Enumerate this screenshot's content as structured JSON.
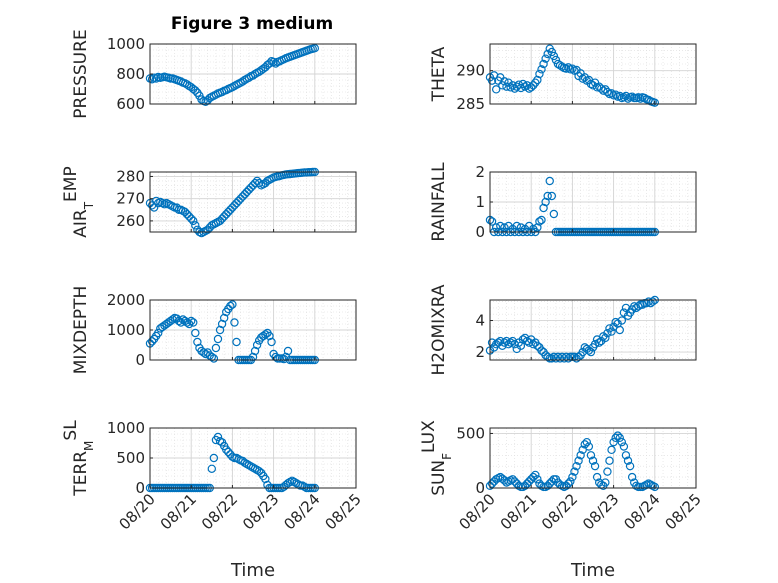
{
  "figure": {
    "title": "Figure 3 medium",
    "marker_color": "#0072bd",
    "grid": true,
    "minor_grid": true
  },
  "chart_data": [
    {
      "type": "scatter",
      "id": "pressure",
      "ylabel": "PRESSURE",
      "ylabel_sub": "",
      "ylim": [
        600,
        1000
      ],
      "yticks": [
        600,
        800,
        1000
      ],
      "xlabel": "",
      "x": [
        0.0,
        0.05,
        0.1,
        0.15,
        0.2,
        0.25,
        0.3,
        0.35,
        0.4,
        0.45,
        0.5,
        0.55,
        0.6,
        0.65,
        0.7,
        0.75,
        0.8,
        0.85,
        0.9,
        0.95,
        1.0,
        1.05,
        1.1,
        1.15,
        1.2,
        1.25,
        1.3,
        1.35,
        1.4,
        1.45,
        1.5,
        1.55,
        1.6,
        1.65,
        1.7,
        1.75,
        1.8,
        1.85,
        1.9,
        1.95,
        2.0,
        2.05,
        2.1,
        2.15,
        2.2,
        2.25,
        2.3,
        2.35,
        2.4,
        2.45,
        2.5,
        2.55,
        2.6,
        2.65,
        2.7,
        2.75,
        2.8,
        2.85,
        2.9,
        2.95,
        3.0,
        3.05,
        3.1,
        3.15,
        3.2,
        3.25,
        3.3,
        3.35,
        3.4,
        3.45,
        3.5,
        3.55,
        3.6,
        3.65,
        3.7,
        3.75,
        3.8,
        3.85,
        3.9,
        3.95,
        4.0
      ],
      "y": [
        770,
        765,
        775,
        770,
        780,
        775,
        778,
        782,
        778,
        775,
        770,
        770,
        765,
        760,
        755,
        750,
        742,
        738,
        730,
        720,
        712,
        700,
        690,
        675,
        655,
        630,
        620,
        615,
        625,
        640,
        648,
        655,
        662,
        670,
        675,
        680,
        688,
        692,
        700,
        706,
        712,
        720,
        728,
        735,
        742,
        750,
        760,
        768,
        775,
        785,
        790,
        800,
        808,
        815,
        825,
        835,
        845,
        860,
        870,
        885,
        880,
        870,
        880,
        885,
        892,
        898,
        905,
        910,
        915,
        920,
        925,
        930,
        935,
        940,
        945,
        950,
        955,
        960,
        965,
        968,
        972
      ]
    },
    {
      "type": "scatter",
      "id": "theta",
      "ylabel": "THETA",
      "ylabel_sub": "",
      "ylim": [
        285,
        294
      ],
      "yticks": [
        285,
        290
      ],
      "xlabel": "",
      "x": [
        0.0,
        0.05,
        0.1,
        0.15,
        0.2,
        0.25,
        0.3,
        0.35,
        0.4,
        0.45,
        0.5,
        0.55,
        0.6,
        0.65,
        0.7,
        0.75,
        0.8,
        0.85,
        0.9,
        0.95,
        1.0,
        1.05,
        1.1,
        1.15,
        1.2,
        1.25,
        1.3,
        1.35,
        1.4,
        1.45,
        1.5,
        1.55,
        1.6,
        1.65,
        1.7,
        1.75,
        1.8,
        1.85,
        1.9,
        1.95,
        2.0,
        2.05,
        2.1,
        2.15,
        2.2,
        2.25,
        2.3,
        2.35,
        2.4,
        2.45,
        2.5,
        2.55,
        2.6,
        2.65,
        2.7,
        2.75,
        2.8,
        2.85,
        2.9,
        2.95,
        3.0,
        3.05,
        3.1,
        3.15,
        3.2,
        3.25,
        3.3,
        3.35,
        3.4,
        3.45,
        3.5,
        3.55,
        3.6,
        3.65,
        3.7,
        3.75,
        3.8,
        3.85,
        3.9,
        3.95,
        4.0
      ],
      "y": [
        289.0,
        288.5,
        289.3,
        287.2,
        288.5,
        289.0,
        287.8,
        288.4,
        287.6,
        288.2,
        287.5,
        287.8,
        287.3,
        287.6,
        287.9,
        287.4,
        288.0,
        287.6,
        287.8,
        287.3,
        287.5,
        287.8,
        288.2,
        288.6,
        289.5,
        290.2,
        291.0,
        291.8,
        292.5,
        293.3,
        292.8,
        292.2,
        291.6,
        291.0,
        290.8,
        290.6,
        290.4,
        290.3,
        290.5,
        290.2,
        290.3,
        290.0,
        290.1,
        289.2,
        289.6,
        288.8,
        289.0,
        288.5,
        288.6,
        288.0,
        287.8,
        288.2,
        287.5,
        287.6,
        287.3,
        287.0,
        287.2,
        286.8,
        286.5,
        286.6,
        286.3,
        286.4,
        286.1,
        286.2,
        285.9,
        286.0,
        286.2,
        285.8,
        286.0,
        286.1,
        285.9,
        285.9,
        286.0,
        285.8,
        286.0,
        285.9,
        285.7,
        285.6,
        285.4,
        285.3,
        285.2
      ]
    },
    {
      "type": "scatter",
      "id": "air_temp",
      "ylabel": "AIR",
      "ylabel_sub": "T",
      "ylabel_rest": "EMP",
      "ylim": [
        255,
        282
      ],
      "yticks": [
        260,
        270,
        280
      ],
      "xlabel": "",
      "x": [
        0.0,
        0.05,
        0.1,
        0.15,
        0.2,
        0.25,
        0.3,
        0.35,
        0.4,
        0.45,
        0.5,
        0.55,
        0.6,
        0.65,
        0.7,
        0.75,
        0.8,
        0.85,
        0.9,
        0.95,
        1.0,
        1.05,
        1.1,
        1.15,
        1.2,
        1.25,
        1.3,
        1.35,
        1.4,
        1.45,
        1.5,
        1.55,
        1.6,
        1.65,
        1.7,
        1.75,
        1.8,
        1.85,
        1.9,
        1.95,
        2.0,
        2.05,
        2.1,
        2.15,
        2.2,
        2.25,
        2.3,
        2.35,
        2.4,
        2.45,
        2.5,
        2.55,
        2.6,
        2.65,
        2.7,
        2.75,
        2.8,
        2.85,
        2.9,
        2.95,
        3.0,
        3.05,
        3.1,
        3.15,
        3.2,
        3.25,
        3.3,
        3.35,
        3.4,
        3.45,
        3.5,
        3.55,
        3.6,
        3.65,
        3.7,
        3.75,
        3.8,
        3.85,
        3.9,
        3.95,
        4.0
      ],
      "y": [
        268,
        267,
        266,
        269,
        268,
        268.5,
        268,
        267.5,
        268,
        267.5,
        267,
        266.5,
        266,
        266,
        265,
        265,
        264.5,
        264,
        263,
        262,
        261,
        260,
        258,
        256,
        255,
        254.5,
        255,
        255.5,
        256,
        257,
        258,
        258.5,
        259,
        259.5,
        260,
        261,
        262,
        263,
        264,
        265,
        266,
        267,
        268,
        269,
        270,
        271,
        272,
        273,
        274,
        275,
        276,
        277,
        278,
        277,
        276,
        276.5,
        277,
        278,
        278.5,
        279,
        279.5,
        279.8,
        280,
        280.2,
        280.5,
        280.7,
        280.9,
        281.0,
        281.1,
        281.2,
        281.3,
        281.4,
        281.5,
        281.6,
        281.7,
        281.8,
        281.8,
        281.9,
        281.9,
        282.0,
        282.0
      ]
    },
    {
      "type": "scatter",
      "id": "rainfall",
      "ylabel": "RAINFALL",
      "ylabel_sub": "",
      "ylim": [
        0,
        2
      ],
      "yticks": [
        0,
        1,
        2
      ],
      "xlabel": "",
      "x": [
        0.0,
        0.05,
        0.1,
        0.15,
        0.2,
        0.25,
        0.3,
        0.35,
        0.4,
        0.45,
        0.5,
        0.55,
        0.6,
        0.65,
        0.7,
        0.75,
        0.8,
        0.85,
        0.9,
        0.95,
        1.0,
        1.05,
        1.1,
        1.15,
        1.2,
        1.25,
        1.3,
        1.35,
        1.4,
        1.45,
        1.5,
        1.55,
        1.6,
        1.65,
        1.7,
        1.75,
        1.8,
        1.85,
        1.9,
        1.95,
        2.0,
        2.05,
        2.1,
        2.15,
        2.2,
        2.25,
        2.3,
        2.35,
        2.4,
        2.45,
        2.5,
        2.55,
        2.6,
        2.65,
        2.7,
        2.75,
        2.8,
        2.85,
        2.9,
        2.95,
        3.0,
        3.05,
        3.1,
        3.15,
        3.2,
        3.25,
        3.3,
        3.35,
        3.4,
        3.45,
        3.5,
        3.55,
        3.6,
        3.65,
        3.7,
        3.75,
        3.8,
        3.85,
        3.9,
        3.95,
        4.0
      ],
      "y": [
        0.4,
        0.35,
        0.0,
        0.15,
        0.0,
        0.2,
        0.0,
        0.15,
        0.0,
        0.2,
        0.0,
        0.1,
        0.0,
        0.2,
        0.0,
        0.15,
        0.0,
        0.1,
        0.0,
        0.2,
        0.0,
        0.1,
        0.0,
        0.15,
        0.35,
        0.4,
        0.8,
        1.0,
        1.2,
        1.7,
        1.2,
        0.6,
        0.0,
        0.0,
        0.0,
        0.0,
        0.0,
        0.0,
        0.0,
        0.0,
        0.0,
        0.0,
        0.0,
        0.0,
        0.0,
        0.0,
        0.0,
        0.0,
        0.0,
        0.0,
        0.0,
        0.0,
        0.0,
        0.0,
        0.0,
        0.0,
        0.0,
        0.0,
        0.0,
        0.0,
        0.0,
        0.0,
        0.0,
        0.0,
        0.0,
        0.0,
        0.0,
        0.0,
        0.0,
        0.0,
        0.0,
        0.0,
        0.0,
        0.0,
        0.0,
        0.0,
        0.0,
        0.0,
        0.0,
        0.0,
        0.0
      ]
    },
    {
      "type": "scatter",
      "id": "mixdepth",
      "ylabel": "MIXDEPTH",
      "ylabel_sub": "",
      "ylim": [
        0,
        2000
      ],
      "yticks": [
        0,
        1000,
        2000
      ],
      "xlabel": "",
      "x": [
        0.0,
        0.05,
        0.1,
        0.15,
        0.2,
        0.25,
        0.3,
        0.35,
        0.4,
        0.45,
        0.5,
        0.55,
        0.6,
        0.65,
        0.7,
        0.75,
        0.8,
        0.85,
        0.9,
        0.95,
        1.0,
        1.05,
        1.1,
        1.15,
        1.2,
        1.25,
        1.3,
        1.35,
        1.4,
        1.45,
        1.5,
        1.55,
        1.6,
        1.65,
        1.7,
        1.75,
        1.8,
        1.85,
        1.9,
        1.95,
        2.0,
        2.05,
        2.1,
        2.15,
        2.2,
        2.25,
        2.3,
        2.35,
        2.4,
        2.45,
        2.5,
        2.55,
        2.6,
        2.65,
        2.7,
        2.75,
        2.8,
        2.85,
        2.9,
        2.95,
        3.0,
        3.05,
        3.1,
        3.15,
        3.2,
        3.25,
        3.3,
        3.35,
        3.4,
        3.45,
        3.5,
        3.55,
        3.6,
        3.65,
        3.7,
        3.75,
        3.8,
        3.85,
        3.9,
        3.95,
        4.0
      ],
      "y": [
        550,
        620,
        700,
        800,
        900,
        1050,
        1100,
        1150,
        1200,
        1250,
        1300,
        1350,
        1400,
        1380,
        1300,
        1250,
        1350,
        1300,
        1250,
        1200,
        1300,
        1250,
        900,
        600,
        400,
        300,
        250,
        200,
        250,
        150,
        100,
        50,
        400,
        700,
        1000,
        1200,
        1400,
        1600,
        1700,
        1800,
        1850,
        1250,
        600,
        0,
        0,
        0,
        0,
        0,
        0,
        0,
        100,
        300,
        500,
        650,
        750,
        800,
        850,
        900,
        800,
        600,
        200,
        100,
        50,
        50,
        50,
        30,
        100,
        300,
        0,
        0,
        0,
        0,
        0,
        0,
        0,
        0,
        0,
        0,
        0,
        0,
        0
      ]
    },
    {
      "type": "scatter",
      "id": "h2omixra",
      "ylabel": "H2OMIXRA",
      "ylabel_sub": "",
      "ylim": [
        1.5,
        5.3
      ],
      "yticks": [
        2,
        4
      ],
      "xlabel": "",
      "x": [
        0.0,
        0.05,
        0.1,
        0.15,
        0.2,
        0.25,
        0.3,
        0.35,
        0.4,
        0.45,
        0.5,
        0.55,
        0.6,
        0.65,
        0.7,
        0.75,
        0.8,
        0.85,
        0.9,
        0.95,
        1.0,
        1.05,
        1.1,
        1.15,
        1.2,
        1.25,
        1.3,
        1.35,
        1.4,
        1.45,
        1.5,
        1.55,
        1.6,
        1.65,
        1.7,
        1.75,
        1.8,
        1.85,
        1.9,
        1.95,
        2.0,
        2.05,
        2.1,
        2.15,
        2.2,
        2.25,
        2.3,
        2.35,
        2.4,
        2.45,
        2.5,
        2.55,
        2.6,
        2.65,
        2.7,
        2.75,
        2.8,
        2.85,
        2.9,
        2.95,
        3.0,
        3.05,
        3.1,
        3.15,
        3.2,
        3.25,
        3.3,
        3.35,
        3.4,
        3.45,
        3.5,
        3.55,
        3.6,
        3.65,
        3.7,
        3.75,
        3.8,
        3.85,
        3.9,
        3.95,
        4.0
      ],
      "y": [
        2.1,
        2.6,
        2.3,
        2.5,
        2.6,
        2.7,
        2.4,
        2.6,
        2.7,
        2.5,
        2.6,
        2.7,
        2.5,
        2.2,
        2.6,
        2.4,
        2.8,
        2.9,
        2.7,
        2.6,
        2.8,
        2.5,
        2.6,
        2.4,
        2.3,
        2.1,
        2.0,
        1.8,
        1.7,
        1.6,
        1.6,
        1.7,
        1.6,
        1.7,
        1.6,
        1.7,
        1.6,
        1.7,
        1.6,
        1.7,
        1.7,
        1.7,
        1.6,
        1.7,
        1.8,
        2.0,
        2.3,
        2.2,
        2.1,
        2.0,
        2.3,
        2.5,
        2.8,
        2.6,
        2.7,
        3.0,
        2.9,
        3.2,
        3.5,
        3.3,
        3.6,
        3.9,
        3.8,
        3.4,
        4.0,
        4.5,
        4.8,
        4.3,
        4.5,
        4.7,
        4.9,
        4.8,
        4.9,
        5.0,
        5.0,
        5.1,
        5.1,
        5.2,
        5.1,
        5.2,
        5.3
      ]
    },
    {
      "type": "scatter",
      "id": "terr_msl",
      "ylabel": "TERR",
      "ylabel_sub": "M",
      "ylabel_rest": "SL",
      "ylim": [
        0,
        1000
      ],
      "yticks": [
        0,
        500,
        1000
      ],
      "xlabel": "Time",
      "x": [
        0.0,
        0.05,
        0.1,
        0.15,
        0.2,
        0.25,
        0.3,
        0.35,
        0.4,
        0.45,
        0.5,
        0.55,
        0.6,
        0.65,
        0.7,
        0.75,
        0.8,
        0.85,
        0.9,
        0.95,
        1.0,
        1.05,
        1.1,
        1.15,
        1.2,
        1.25,
        1.3,
        1.35,
        1.4,
        1.45,
        1.5,
        1.55,
        1.6,
        1.65,
        1.7,
        1.75,
        1.8,
        1.85,
        1.9,
        1.95,
        2.0,
        2.05,
        2.1,
        2.15,
        2.2,
        2.25,
        2.3,
        2.35,
        2.4,
        2.45,
        2.5,
        2.55,
        2.6,
        2.65,
        2.7,
        2.75,
        2.8,
        2.85,
        2.9,
        2.95,
        3.0,
        3.05,
        3.1,
        3.15,
        3.2,
        3.25,
        3.3,
        3.35,
        3.4,
        3.45,
        3.5,
        3.55,
        3.6,
        3.65,
        3.7,
        3.75,
        3.8,
        3.85,
        3.9,
        3.95,
        4.0
      ],
      "y": [
        0,
        0,
        0,
        0,
        0,
        0,
        0,
        0,
        0,
        0,
        0,
        0,
        0,
        0,
        0,
        0,
        0,
        0,
        0,
        0,
        0,
        0,
        0,
        0,
        0,
        0,
        0,
        0,
        0,
        0,
        320,
        500,
        800,
        850,
        780,
        760,
        700,
        640,
        600,
        560,
        520,
        500,
        500,
        480,
        460,
        450,
        420,
        400,
        380,
        360,
        340,
        320,
        300,
        280,
        250,
        200,
        150,
        50,
        0,
        0,
        0,
        0,
        0,
        0,
        0,
        20,
        50,
        80,
        100,
        120,
        100,
        80,
        60,
        40,
        40,
        20,
        0,
        0,
        0,
        0,
        0
      ]
    },
    {
      "type": "scatter",
      "id": "sun_flux",
      "ylabel": "SUN",
      "ylabel_sub": "F",
      "ylabel_rest": "LUX",
      "ylim": [
        0,
        550
      ],
      "yticks": [
        0,
        500
      ],
      "xlabel": "Time",
      "x": [
        0.0,
        0.05,
        0.1,
        0.15,
        0.2,
        0.25,
        0.3,
        0.35,
        0.4,
        0.45,
        0.5,
        0.55,
        0.6,
        0.65,
        0.7,
        0.75,
        0.8,
        0.85,
        0.9,
        0.95,
        1.0,
        1.05,
        1.1,
        1.15,
        1.2,
        1.25,
        1.3,
        1.35,
        1.4,
        1.45,
        1.5,
        1.55,
        1.6,
        1.65,
        1.7,
        1.75,
        1.8,
        1.85,
        1.9,
        1.95,
        2.0,
        2.05,
        2.1,
        2.15,
        2.2,
        2.25,
        2.3,
        2.35,
        2.4,
        2.45,
        2.5,
        2.55,
        2.6,
        2.65,
        2.7,
        2.75,
        2.8,
        2.85,
        2.9,
        2.95,
        3.0,
        3.05,
        3.1,
        3.15,
        3.2,
        3.25,
        3.3,
        3.35,
        3.4,
        3.45,
        3.5,
        3.55,
        3.6,
        3.65,
        3.7,
        3.75,
        3.8,
        3.85,
        3.9,
        3.95,
        4.0
      ],
      "y": [
        20,
        40,
        60,
        80,
        90,
        100,
        85,
        70,
        50,
        60,
        70,
        80,
        60,
        40,
        20,
        10,
        10,
        20,
        40,
        60,
        80,
        100,
        120,
        80,
        40,
        20,
        10,
        10,
        20,
        40,
        60,
        80,
        80,
        50,
        30,
        20,
        10,
        20,
        40,
        60,
        100,
        150,
        200,
        250,
        300,
        350,
        400,
        420,
        380,
        300,
        250,
        200,
        100,
        50,
        30,
        20,
        50,
        150,
        250,
        350,
        420,
        460,
        480,
        460,
        420,
        380,
        300,
        250,
        200,
        100,
        50,
        20,
        10,
        10,
        10,
        20,
        30,
        40,
        30,
        20,
        10
      ]
    }
  ],
  "x_axis": {
    "ticklabels": [
      "08/20",
      "08/21",
      "08/22",
      "08/23",
      "08/24",
      "08/25"
    ],
    "tick_values": [
      0,
      1,
      2,
      3,
      4,
      5
    ],
    "xlim": [
      0,
      5
    ]
  }
}
